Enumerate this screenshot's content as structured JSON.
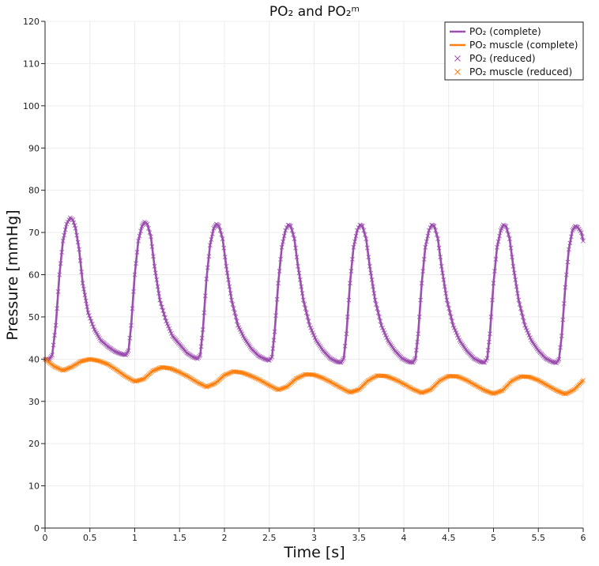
{
  "chart_data": {
    "type": "line",
    "title": "PO₂ and PO₂ᵐ",
    "xlabel": "Time [s]",
    "ylabel": "Pressure [mmHg]",
    "xlim": [
      0,
      6
    ],
    "ylim": [
      0,
      120
    ],
    "xticks": [
      "0",
      "0.5",
      "1",
      "1.5",
      "2",
      "2.5",
      "3",
      "3.5",
      "4",
      "4.5",
      "5",
      "5.5",
      "6"
    ],
    "yticks": [
      "0",
      "10",
      "20",
      "30",
      "40",
      "50",
      "60",
      "70",
      "80",
      "90",
      "100",
      "110",
      "120"
    ],
    "grid": true,
    "legend_position": "top-right",
    "series": [
      {
        "name": "PO₂ (complete)",
        "style": "line",
        "color": "#9b4fae",
        "x": [
          0,
          0.05,
          0.08,
          0.12,
          0.16,
          0.2,
          0.24,
          0.28,
          0.31,
          0.34,
          0.38,
          0.42,
          0.48,
          0.55,
          0.62,
          0.7,
          0.78,
          0.85,
          0.9,
          0.93,
          0.96,
          1.0,
          1.04,
          1.08,
          1.11,
          1.14,
          1.18,
          1.22,
          1.28,
          1.35,
          1.42,
          1.5,
          1.58,
          1.65,
          1.7,
          1.73,
          1.76,
          1.8,
          1.84,
          1.88,
          1.91,
          1.94,
          1.98,
          2.02,
          2.08,
          2.15,
          2.22,
          2.3,
          2.38,
          2.45,
          2.5,
          2.53,
          2.56,
          2.6,
          2.64,
          2.68,
          2.71,
          2.74,
          2.78,
          2.82,
          2.88,
          2.95,
          3.02,
          3.1,
          3.18,
          3.25,
          3.3,
          3.33,
          3.36,
          3.4,
          3.44,
          3.48,
          3.51,
          3.54,
          3.58,
          3.62,
          3.68,
          3.75,
          3.82,
          3.9,
          3.98,
          4.05,
          4.1,
          4.13,
          4.16,
          4.2,
          4.24,
          4.28,
          4.31,
          4.34,
          4.38,
          4.42,
          4.48,
          4.55,
          4.62,
          4.7,
          4.78,
          4.85,
          4.9,
          4.93,
          4.96,
          5.0,
          5.04,
          5.08,
          5.11,
          5.14,
          5.18,
          5.22,
          5.28,
          5.35,
          5.42,
          5.5,
          5.58,
          5.65,
          5.7,
          5.73,
          5.76,
          5.8,
          5.84,
          5.88,
          5.91,
          5.94,
          5.98,
          6.0
        ],
        "y": [
          40,
          40,
          41,
          48,
          60,
          68,
          72,
          73.5,
          73,
          71,
          66,
          58,
          51,
          47,
          44.5,
          43,
          41.8,
          41.2,
          41,
          42,
          48,
          60,
          68,
          71.5,
          72.5,
          72,
          69,
          62,
          54,
          49,
          45.5,
          43.5,
          41.5,
          40.5,
          40.1,
          41,
          47,
          59,
          67,
          71,
          72,
          71.5,
          68.5,
          62,
          54,
          48,
          45,
          42.5,
          40.8,
          40,
          39.7,
          40.5,
          46.5,
          58,
          66.5,
          70.5,
          71.8,
          71.5,
          68.5,
          62,
          54,
          48,
          44.5,
          42,
          40.2,
          39.4,
          39.2,
          40.2,
          46,
          58,
          66.5,
          70.5,
          71.8,
          71.5,
          68.5,
          62,
          54,
          48,
          44.5,
          42,
          40.2,
          39.4,
          39.2,
          40.2,
          46,
          58,
          66.5,
          70.5,
          71.8,
          71.5,
          68.5,
          62,
          54,
          48,
          44.5,
          42,
          40.2,
          39.4,
          39.2,
          40.2,
          46,
          58,
          66.5,
          70.5,
          71.8,
          71.5,
          68.5,
          62,
          54,
          48,
          44.5,
          42,
          40.2,
          39.4,
          39.1,
          40,
          45.5,
          57,
          66,
          70.5,
          71.5,
          71.2,
          70,
          68
        ]
      },
      {
        "name": "PO₂ muscle (complete)",
        "style": "line",
        "color": "#ff7f0e",
        "x": [
          0,
          0.1,
          0.2,
          0.3,
          0.4,
          0.5,
          0.6,
          0.7,
          0.8,
          0.9,
          1.0,
          1.1,
          1.2,
          1.3,
          1.4,
          1.5,
          1.6,
          1.7,
          1.8,
          1.9,
          2.0,
          2.1,
          2.2,
          2.3,
          2.4,
          2.5,
          2.6,
          2.7,
          2.8,
          2.9,
          3.0,
          3.1,
          3.2,
          3.3,
          3.4,
          3.5,
          3.6,
          3.7,
          3.8,
          3.9,
          4.0,
          4.1,
          4.2,
          4.3,
          4.4,
          4.5,
          4.6,
          4.7,
          4.8,
          4.9,
          5.0,
          5.1,
          5.2,
          5.3,
          5.4,
          5.5,
          5.6,
          5.7,
          5.8,
          5.9,
          6.0
        ],
        "y": [
          40,
          38.3,
          37.3,
          38.2,
          39.5,
          40,
          39.6,
          38.8,
          37.4,
          35.9,
          34.7,
          35.3,
          37.2,
          38.1,
          37.8,
          36.9,
          35.8,
          34.5,
          33.4,
          34.3,
          36.2,
          37.1,
          36.8,
          36.0,
          35.0,
          33.8,
          32.7,
          33.5,
          35.4,
          36.4,
          36.3,
          35.5,
          34.4,
          33.2,
          32.1,
          32.8,
          34.9,
          36.1,
          36.0,
          35.2,
          34.1,
          32.9,
          32.0,
          32.8,
          34.9,
          36.0,
          35.9,
          35.0,
          33.8,
          32.6,
          31.8,
          32.6,
          34.8,
          35.9,
          35.8,
          35.0,
          33.8,
          32.6,
          31.7,
          32.8,
          35.0
        ]
      },
      {
        "name": "PO₂ (reduced)",
        "style": "markers",
        "color": "#9b4fae",
        "x": [
          0,
          0.05,
          0.08,
          0.12,
          0.16,
          0.2,
          0.24,
          0.28,
          0.31,
          0.34,
          0.38,
          0.42,
          0.48,
          0.55,
          0.62,
          0.7,
          0.78,
          0.85,
          0.9,
          0.93,
          0.96,
          1.0,
          1.04,
          1.08,
          1.11,
          1.14,
          1.18,
          1.22,
          1.28,
          1.35,
          1.42,
          1.5,
          1.58,
          1.65,
          1.7,
          1.73,
          1.76,
          1.8,
          1.84,
          1.88,
          1.91,
          1.94,
          1.98,
          2.02,
          2.08,
          2.15,
          2.22,
          2.3,
          2.38,
          2.45,
          2.5,
          2.53,
          2.56,
          2.6,
          2.64,
          2.68,
          2.71,
          2.74,
          2.78,
          2.82,
          2.88,
          2.95,
          3.02,
          3.1,
          3.18,
          3.25,
          3.3,
          3.33,
          3.36,
          3.4,
          3.44,
          3.48,
          3.51,
          3.54,
          3.58,
          3.62,
          3.68,
          3.75,
          3.82,
          3.9,
          3.98,
          4.05,
          4.1,
          4.13,
          4.16,
          4.2,
          4.24,
          4.28,
          4.31,
          4.34,
          4.38,
          4.42,
          4.48,
          4.55,
          4.62,
          4.7,
          4.78,
          4.85,
          4.9,
          4.93,
          4.96,
          5.0,
          5.04,
          5.08,
          5.11,
          5.14,
          5.18,
          5.22,
          5.28,
          5.35,
          5.42,
          5.5,
          5.58,
          5.65,
          5.7,
          5.73,
          5.76,
          5.8,
          5.84,
          5.88,
          5.91,
          5.94,
          5.98,
          6.0
        ],
        "y": [
          40,
          40,
          41,
          48,
          60,
          68,
          72,
          73.5,
          73,
          71,
          66,
          58,
          51,
          47,
          44.5,
          43,
          41.8,
          41.2,
          41,
          42,
          48,
          60,
          68,
          71.5,
          72.5,
          72,
          69,
          62,
          54,
          49,
          45.5,
          43.5,
          41.5,
          40.5,
          40.1,
          41,
          47,
          59,
          67,
          71,
          72,
          71.5,
          68.5,
          62,
          54,
          48,
          45,
          42.5,
          40.8,
          40,
          39.7,
          40.5,
          46.5,
          58,
          66.5,
          70.5,
          71.8,
          71.5,
          68.5,
          62,
          54,
          48,
          44.5,
          42,
          40.2,
          39.4,
          39.2,
          40.2,
          46,
          58,
          66.5,
          70.5,
          71.8,
          71.5,
          68.5,
          62,
          54,
          48,
          44.5,
          42,
          40.2,
          39.4,
          39.2,
          40.2,
          46,
          58,
          66.5,
          70.5,
          71.8,
          71.5,
          68.5,
          62,
          54,
          48,
          44.5,
          42,
          40.2,
          39.4,
          39.2,
          40.2,
          46,
          58,
          66.5,
          70.5,
          71.8,
          71.5,
          68.5,
          62,
          54,
          48,
          44.5,
          42,
          40.2,
          39.4,
          39.1,
          40,
          45.5,
          57,
          66,
          70.5,
          71.5,
          71.2,
          70,
          68
        ]
      },
      {
        "name": "PO₂ muscle (reduced)",
        "style": "markers",
        "color": "#ff7f0e",
        "x": [
          0,
          0.1,
          0.2,
          0.3,
          0.4,
          0.5,
          0.6,
          0.7,
          0.8,
          0.9,
          1.0,
          1.1,
          1.2,
          1.3,
          1.4,
          1.5,
          1.6,
          1.7,
          1.8,
          1.9,
          2.0,
          2.1,
          2.2,
          2.3,
          2.4,
          2.5,
          2.6,
          2.7,
          2.8,
          2.9,
          3.0,
          3.1,
          3.2,
          3.3,
          3.4,
          3.5,
          3.6,
          3.7,
          3.8,
          3.9,
          4.0,
          4.1,
          4.2,
          4.3,
          4.4,
          4.5,
          4.6,
          4.7,
          4.8,
          4.9,
          5.0,
          5.1,
          5.2,
          5.3,
          5.4,
          5.5,
          5.6,
          5.7,
          5.8,
          5.9,
          6.0
        ],
        "y": [
          40,
          38.3,
          37.3,
          38.2,
          39.5,
          40,
          39.6,
          38.8,
          37.4,
          35.9,
          34.7,
          35.3,
          37.2,
          38.1,
          37.8,
          36.9,
          35.8,
          34.5,
          33.4,
          34.3,
          36.2,
          37.1,
          36.8,
          36.0,
          35.0,
          33.8,
          32.7,
          33.5,
          35.4,
          36.4,
          36.3,
          35.5,
          34.4,
          33.2,
          32.1,
          32.8,
          34.9,
          36.1,
          36.0,
          35.2,
          34.1,
          32.9,
          32.0,
          32.8,
          34.9,
          36.0,
          35.9,
          35.0,
          33.8,
          32.6,
          31.8,
          32.6,
          34.8,
          35.9,
          35.8,
          35.0,
          33.8,
          32.6,
          31.7,
          32.8,
          35.0
        ]
      }
    ]
  }
}
